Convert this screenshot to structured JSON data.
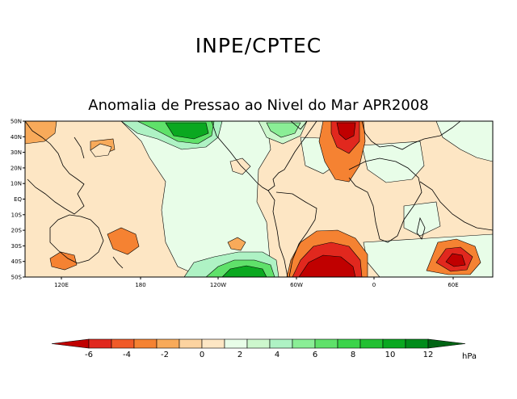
{
  "header": {
    "title": "INPE/CPTEC"
  },
  "map": {
    "title": "Anomalia de Pressao ao Nivel do Mar APR2008",
    "lat_labels": [
      "50N",
      "40N",
      "30N",
      "20N",
      "10N",
      "EQ",
      "10S",
      "20S",
      "30S",
      "40S",
      "50S"
    ],
    "lon_labels": [
      "120E",
      "180",
      "120W",
      "60W",
      "0",
      "60E"
    ]
  },
  "chart_data": {
    "type": "heatmap",
    "title": "Anomalia de Pressao ao Nivel do Mar APR2008",
    "variable": "sea level pressure anomaly",
    "period": "APR2008",
    "lat_range": [
      -50,
      50
    ],
    "colorbar": {
      "unit": "hPa",
      "ticks": [
        "-6",
        "-4",
        "-2",
        "0",
        "2",
        "4",
        "6",
        "8",
        "10",
        "12"
      ],
      "bins": [
        {
          "range": "< -6",
          "color": "#c00000"
        },
        {
          "range": "-6 to -5",
          "color": "#e1281e"
        },
        {
          "range": "-5 to -4",
          "color": "#f05a28"
        },
        {
          "range": "-4 to -3",
          "color": "#f58232"
        },
        {
          "range": "-3 to -2",
          "color": "#f8aa5a"
        },
        {
          "range": "-2 to -1",
          "color": "#fcd3a0"
        },
        {
          "range": "-1 to 0",
          "color": "#fde6c4"
        },
        {
          "range": "0 to 1",
          "color": "#e8fde8"
        },
        {
          "range": "1 to 2",
          "color": "#cdf7cd"
        },
        {
          "range": "2 to 3",
          "color": "#aef2c4"
        },
        {
          "range": "3 to 4",
          "color": "#8aee96"
        },
        {
          "range": "4 to 5",
          "color": "#5fe16a"
        },
        {
          "range": "5 to 6",
          "color": "#3bd44a"
        },
        {
          "range": "6 to 8",
          "color": "#22c032"
        },
        {
          "range": "8 to 10",
          "color": "#0aa820"
        },
        {
          "range": "10 to 12",
          "color": "#008c1a"
        },
        {
          "range": "> 12",
          "color": "#006414"
        }
      ]
    }
  }
}
